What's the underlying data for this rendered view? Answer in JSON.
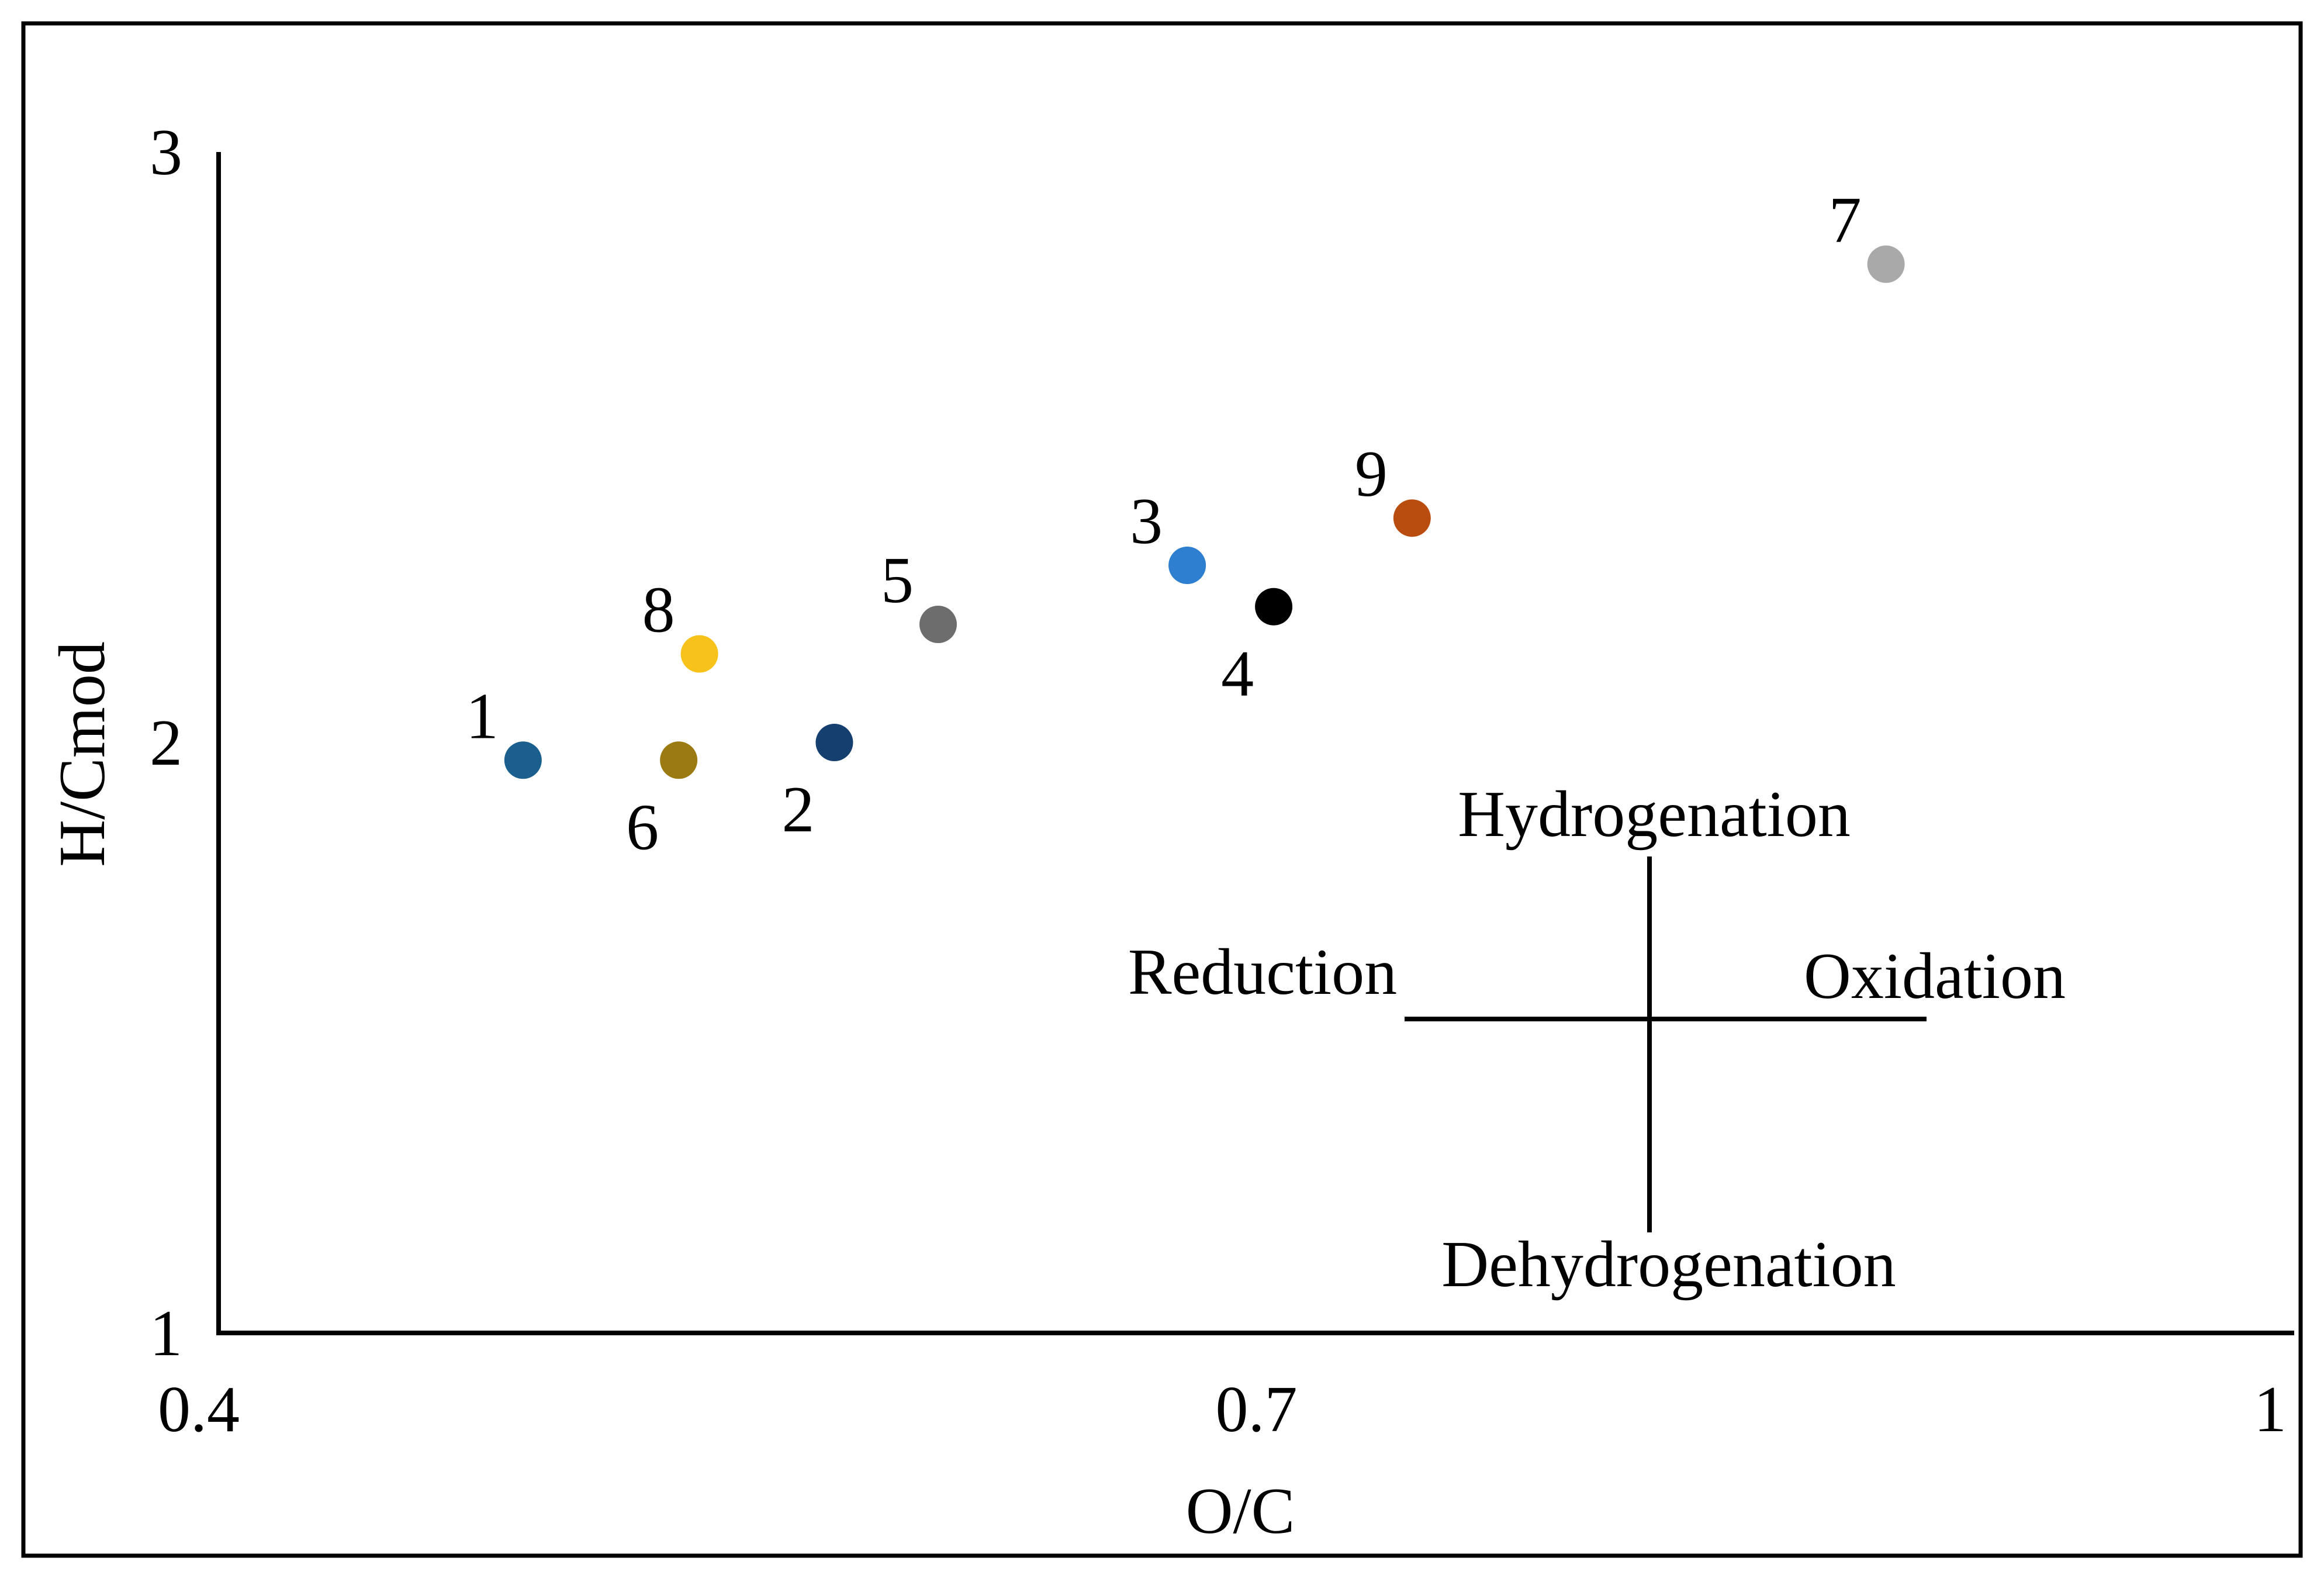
{
  "chart_data": {
    "type": "scatter",
    "title": "",
    "xlabel": "O/C",
    "ylabel": "H/Cmod",
    "xlim": [
      0.4,
      1.0
    ],
    "ylim": [
      1,
      3
    ],
    "xticks": [
      {
        "value": 0.4,
        "label": "0.4"
      },
      {
        "value": 0.7,
        "label": "0.7"
      },
      {
        "value": 1.0,
        "label": "1"
      }
    ],
    "yticks": [
      {
        "value": 1,
        "label": "1"
      },
      {
        "value": 2,
        "label": "2"
      },
      {
        "value": 3,
        "label": "3"
      }
    ],
    "grid": false,
    "points": [
      {
        "label": "1",
        "x": 0.488,
        "y": 1.97,
        "color": "#1a5f8e",
        "label_pos": "upper-left"
      },
      {
        "label": "2",
        "x": 0.578,
        "y": 2.0,
        "color": "#153f6e",
        "label_pos": "lower-left"
      },
      {
        "label": "3",
        "x": 0.68,
        "y": 2.3,
        "color": "#2f7fd0",
        "label_pos": "upper-left"
      },
      {
        "label": "4",
        "x": 0.705,
        "y": 2.23,
        "color": "#000000",
        "label_pos": "lower-left"
      },
      {
        "label": "5",
        "x": 0.608,
        "y": 2.2,
        "color": "#6d6d6d",
        "label_pos": "upper-left"
      },
      {
        "label": "6",
        "x": 0.533,
        "y": 1.97,
        "color": "#9c7a12",
        "label_pos": "lower-left"
      },
      {
        "label": "7",
        "x": 0.882,
        "y": 2.81,
        "color": "#a9a9a9",
        "label_pos": "upper-left"
      },
      {
        "label": "8",
        "x": 0.539,
        "y": 2.15,
        "color": "#f7c21a",
        "label_pos": "upper-left"
      },
      {
        "label": "9",
        "x": 0.745,
        "y": 2.38,
        "color": "#b94d10",
        "label_pos": "upper-left"
      }
    ],
    "annotations": {
      "top": "Hydrogenation",
      "bottom": "Dehydrogenation",
      "left": "Reduction",
      "right": "Oxidation"
    }
  }
}
